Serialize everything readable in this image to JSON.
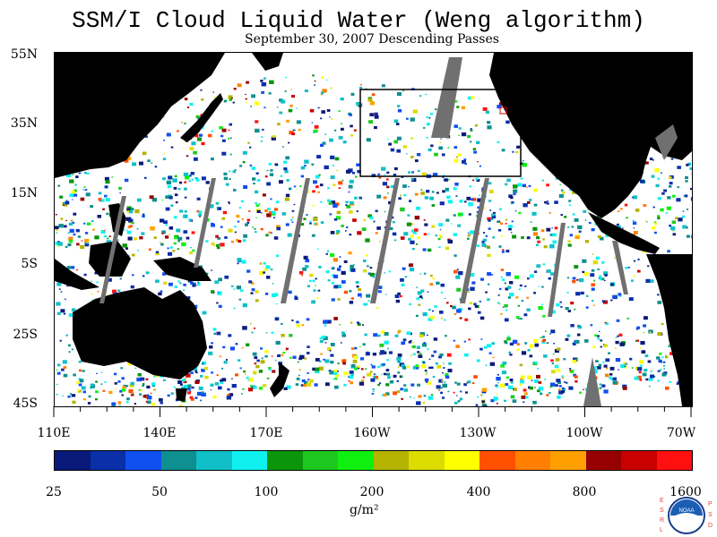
{
  "title": "SSM/I Cloud Liquid Water (Weng algorithm)",
  "subtitle": "September 30, 2007  Descending Passes",
  "lat_labels": [
    "55N",
    "35N",
    "15N",
    "5S",
    "25S",
    "45S"
  ],
  "lon_labels": [
    "110E",
    "140E",
    "170E",
    "160W",
    "130W",
    "100W",
    "70W"
  ],
  "colorbar": {
    "colors": [
      "#0a1a7a",
      "#0a2fa8",
      "#1050f0",
      "#0e8f90",
      "#10bfc8",
      "#10f0f0",
      "#0a960a",
      "#1ec81e",
      "#10f010",
      "#b4b400",
      "#dcdc00",
      "#ffff00",
      "#ff5000",
      "#ff8000",
      "#ffa000",
      "#960000",
      "#c80000",
      "#ff1010"
    ],
    "labels": [
      "25",
      "50",
      "100",
      "200",
      "400",
      "800",
      "1600"
    ],
    "units": "g/m²"
  },
  "logo": {
    "left_letters": "ESRL",
    "right_letters": "PSD",
    "center_text": "NOAA"
  }
}
